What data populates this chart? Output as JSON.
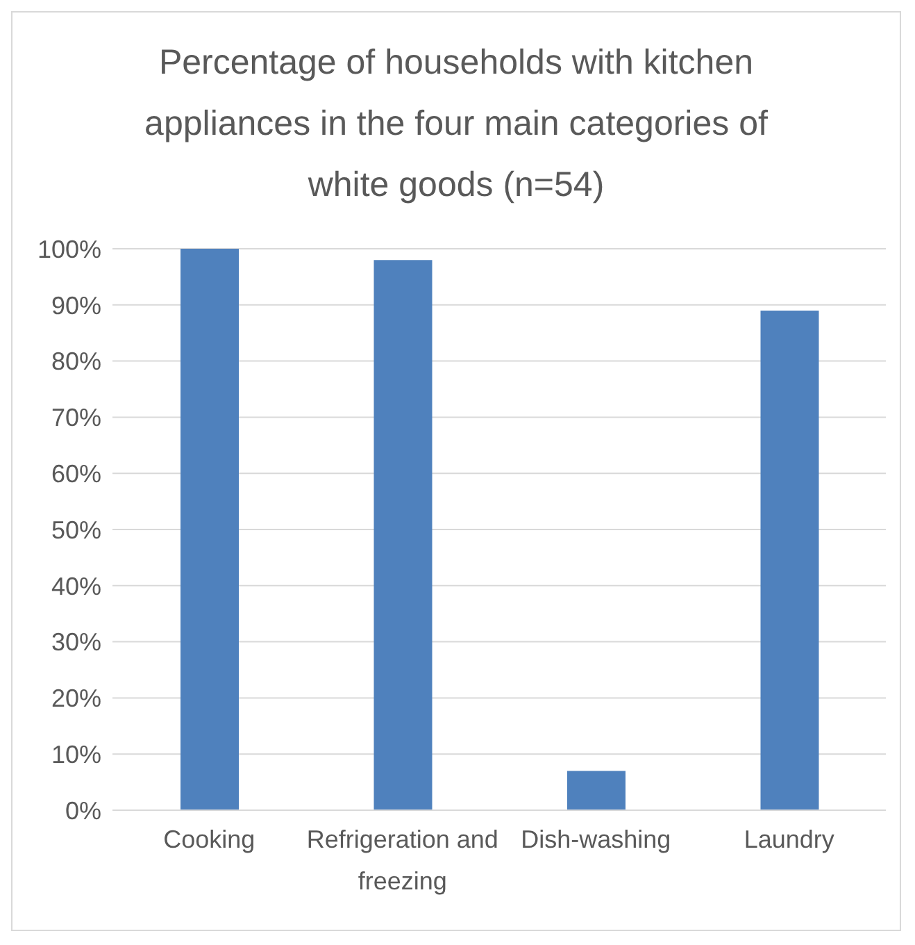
{
  "chart_data": {
    "type": "bar",
    "title": "Percentage of households with kitchen appliances in the four main categories of white goods (n=54)",
    "categories": [
      "Cooking",
      "Refrigeration and freezing",
      "Dish-washing",
      "Laundry"
    ],
    "values": [
      100,
      98,
      7,
      89
    ],
    "color": "#4f81bd",
    "ylim": [
      0,
      100
    ],
    "yticks": [
      {
        "value": 0,
        "label": "0%"
      },
      {
        "value": 10,
        "label": "10%"
      },
      {
        "value": 20,
        "label": "20%"
      },
      {
        "value": 30,
        "label": "30%"
      },
      {
        "value": 40,
        "label": "40%"
      },
      {
        "value": 50,
        "label": "50%"
      },
      {
        "value": 60,
        "label": "60%"
      },
      {
        "value": 70,
        "label": "70%"
      },
      {
        "value": 80,
        "label": "80%"
      },
      {
        "value": 90,
        "label": "90%"
      },
      {
        "value": 100,
        "label": "100%"
      }
    ],
    "grid": "y",
    "legend": false
  }
}
